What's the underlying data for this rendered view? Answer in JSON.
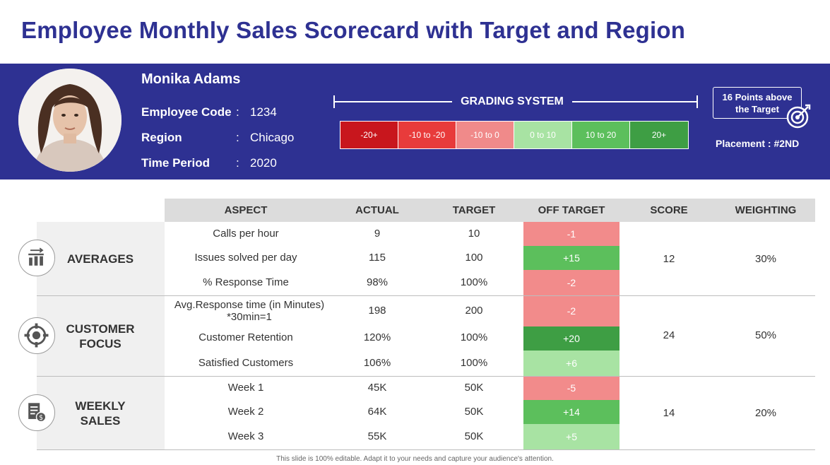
{
  "title": "Employee Monthly Sales Scorecard with Target and Region",
  "employee": {
    "name": "Monika Adams",
    "code_label": "Employee Code",
    "code": "1234",
    "region_label": "Region",
    "region": "Chicago",
    "period_label": "Time Period",
    "period": "2020",
    "separator": ":"
  },
  "grading": {
    "title": "GRADING SYSTEM",
    "scale": [
      {
        "label": "-20+",
        "color": "#c8161d"
      },
      {
        "label": "-10 to -20",
        "color": "#e83b3b"
      },
      {
        "label": "-10 to 0",
        "color": "#f08a8a"
      },
      {
        "label": "0 to 10",
        "color": "#a8e3a3"
      },
      {
        "label": "10 to 20",
        "color": "#5cbf5c"
      },
      {
        "label": "20+",
        "color": "#3e9e44"
      }
    ]
  },
  "points": {
    "line1": "16 Points above",
    "line2": "the Target",
    "placement": "Placement : #2ND"
  },
  "table": {
    "headers": {
      "aspect": "ASPECT",
      "actual": "ACTUAL",
      "target": "TARGET",
      "off_target": "OFF TARGET",
      "score": "SCORE",
      "weighting": "WEIGHTING"
    },
    "groups": [
      {
        "label": "AVERAGES",
        "icon": "bar-chart-icon",
        "score": "12",
        "weighting": "30%",
        "rows": [
          {
            "aspect": "Calls per hour",
            "actual": "9",
            "target": "10",
            "off": "-1",
            "color": "#f28b8b"
          },
          {
            "aspect": "Issues  solved per day",
            "actual": "115",
            "target": "100",
            "off": "+15",
            "color": "#5cbf5c"
          },
          {
            "aspect": "% Response Time",
            "actual": "98%",
            "target": "100%",
            "off": "-2",
            "color": "#f28b8b"
          }
        ]
      },
      {
        "label_line1": "CUSTOMER",
        "label_line2": "FOCUS",
        "icon": "target-focus-icon",
        "score": "24",
        "weighting": "50%",
        "rows": [
          {
            "aspect_line1": "Avg.Response time (in Minutes)",
            "aspect_line2": "*30min=1",
            "actual": "198",
            "target": "200",
            "off": "-2",
            "color": "#f28b8b"
          },
          {
            "aspect": "Customer Retention",
            "actual": "120%",
            "target": "100%",
            "off": "+20",
            "color": "#3e9e44"
          },
          {
            "aspect": "Satisfied Customers",
            "actual": "106%",
            "target": "100%",
            "off": "+6",
            "color": "#a8e3a3"
          }
        ]
      },
      {
        "label_line1": "WEEKLY",
        "label_line2": "SALES",
        "icon": "sales-report-icon",
        "score": "14",
        "weighting": "20%",
        "rows": [
          {
            "aspect": "Week 1",
            "actual": "45K",
            "target": "50K",
            "off": "-5",
            "color": "#f28b8b"
          },
          {
            "aspect": "Week 2",
            "actual": "64K",
            "target": "50K",
            "off": "+14",
            "color": "#5cbf5c"
          },
          {
            "aspect": "Week 3",
            "actual": "55K",
            "target": "50K",
            "off": "+5",
            "color": "#a8e3a3"
          }
        ]
      }
    ]
  },
  "footer": "This slide is 100% editable. Adapt it to your needs and capture your audience's attention."
}
